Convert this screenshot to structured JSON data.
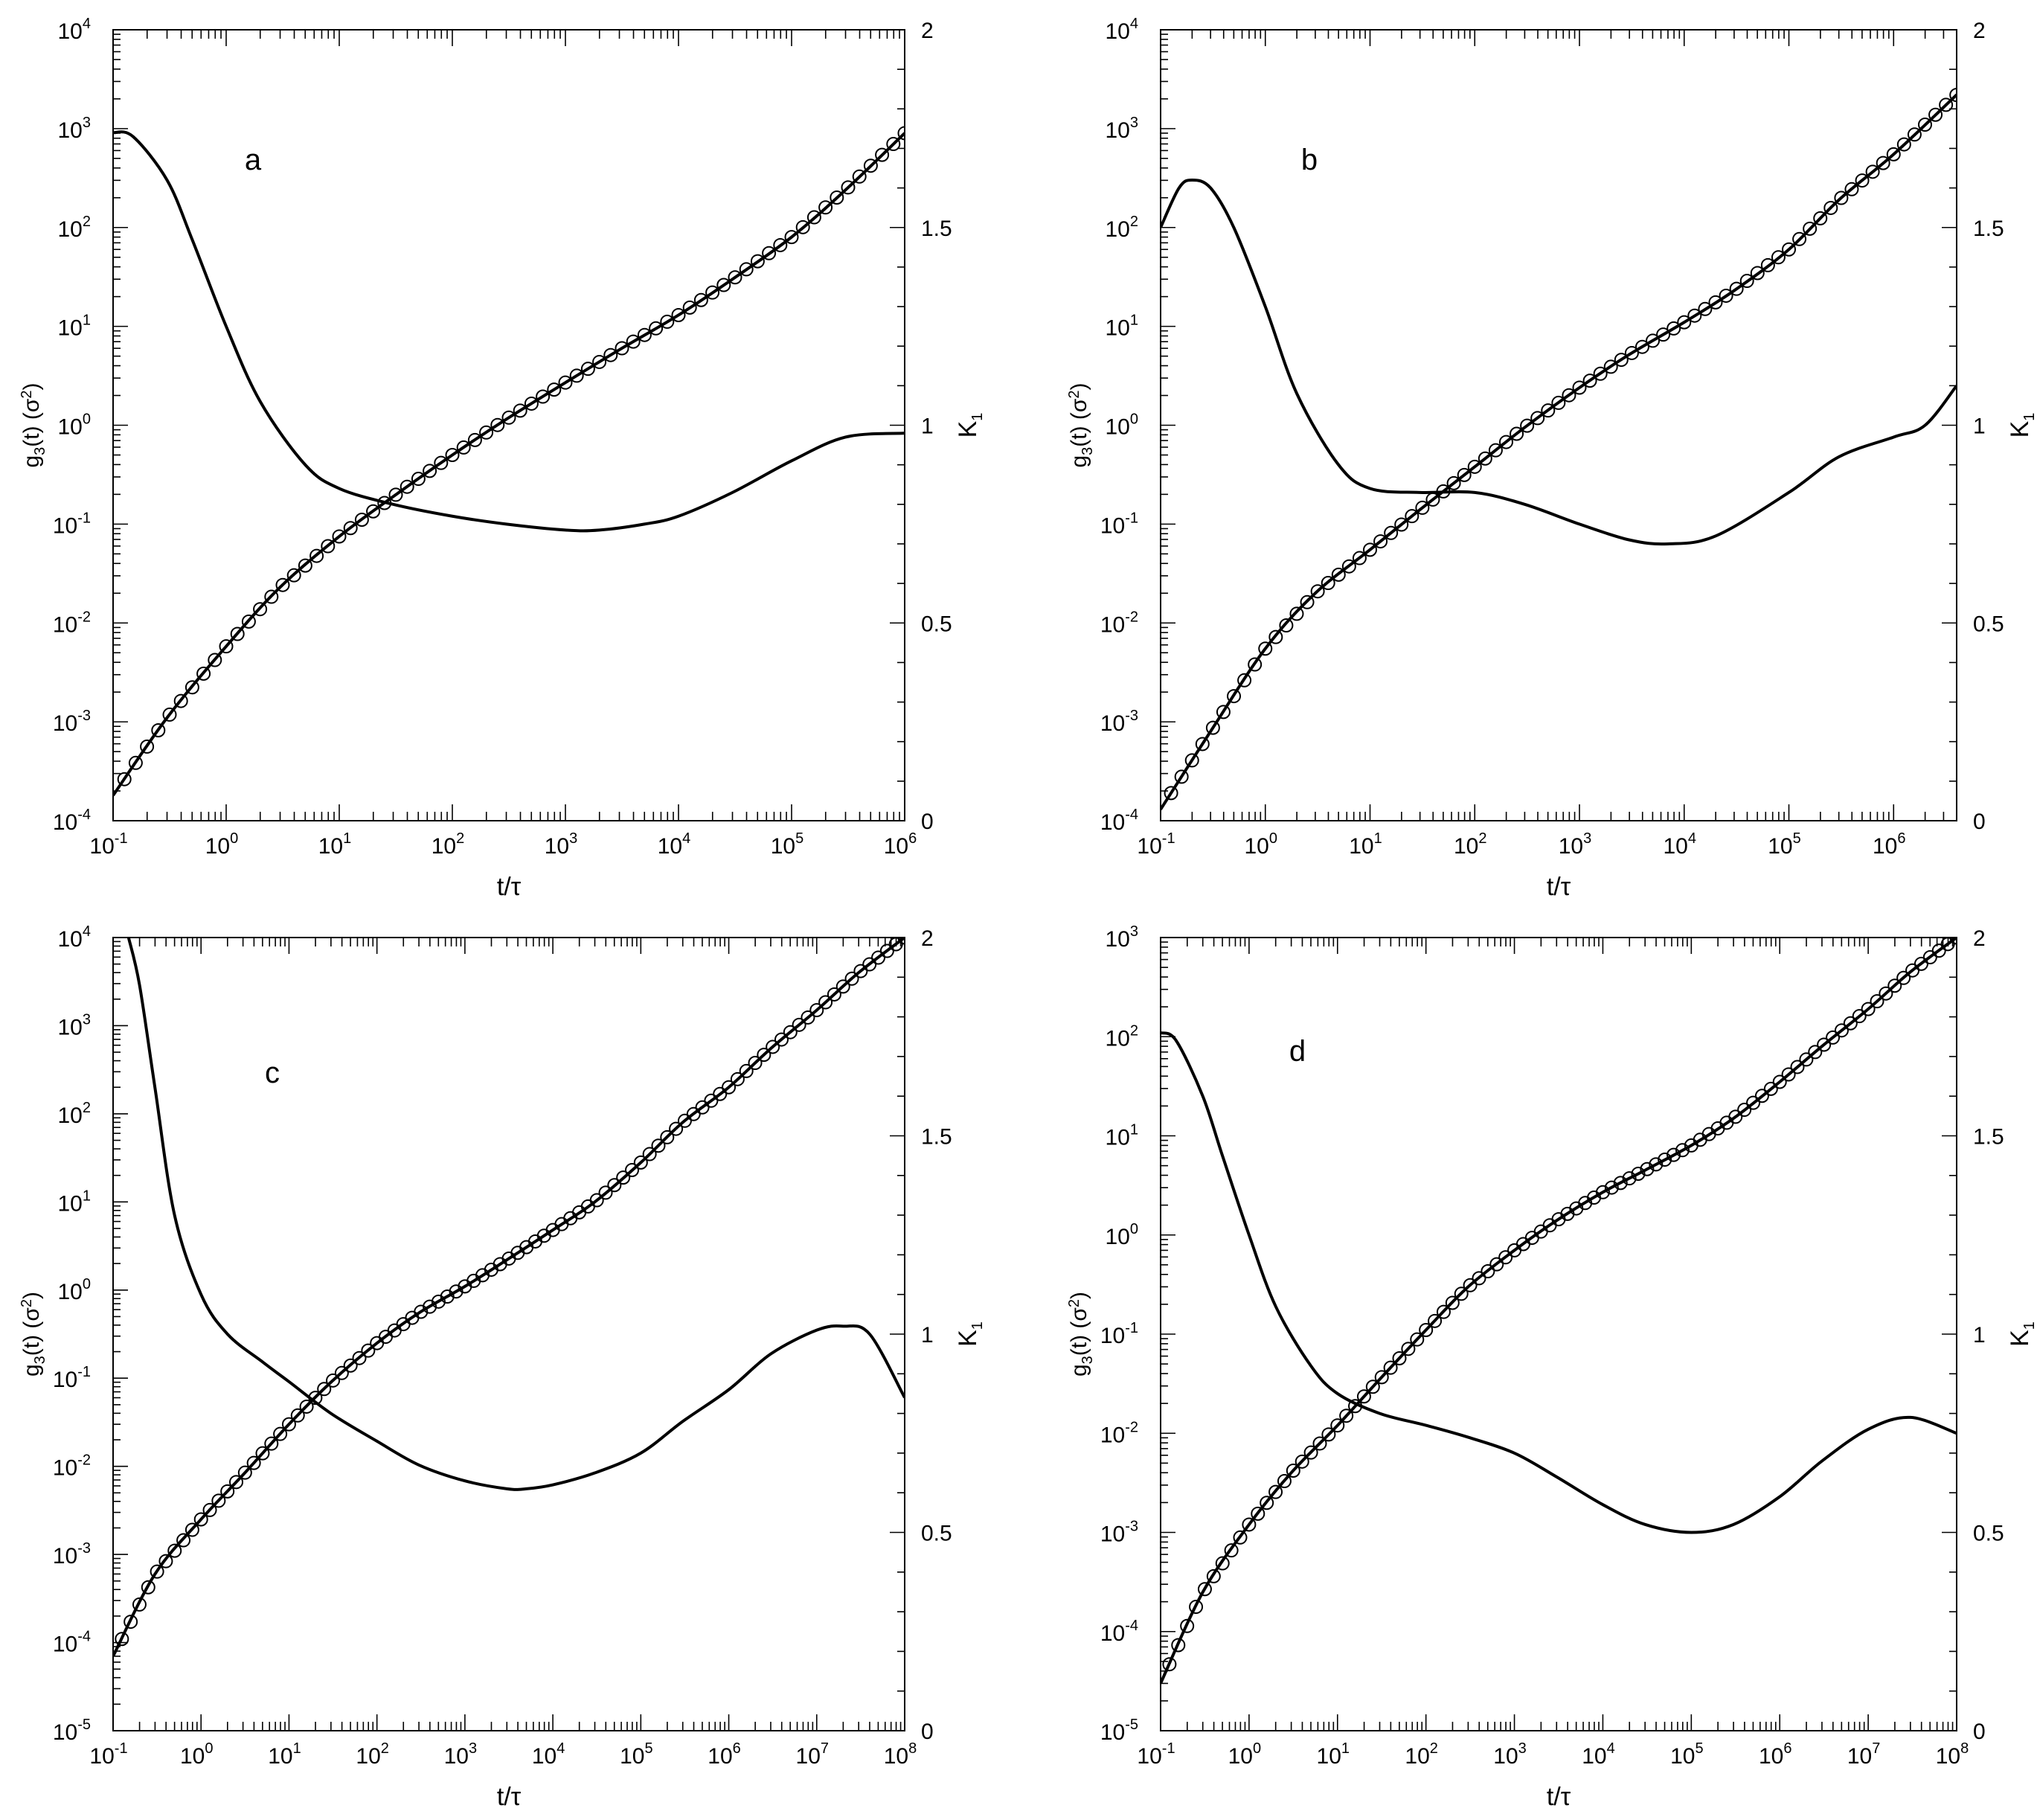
{
  "chart_data": [
    {
      "type": "line",
      "panel_label": "a",
      "xlabel": "t/τ",
      "ylabel_left": "g3(t) (σ2)",
      "ylabel_right": "K1",
      "x_scale": "log",
      "y_left_scale": "log",
      "x_range": [
        0.1,
        1000000
      ],
      "y_left_range": [
        0.0001,
        10000
      ],
      "y_right_range": [
        0,
        2
      ],
      "x_tick_exponents": [
        -1,
        0,
        1,
        2,
        3,
        4,
        5,
        6
      ],
      "y_left_tick_exponents": [
        -4,
        -3,
        -2,
        -1,
        0,
        1,
        2,
        3,
        4
      ],
      "y_right_ticks": [
        "0",
        "0.5",
        "1",
        "1.5",
        "2"
      ],
      "series": [
        {
          "axis": "left",
          "style": "line with open circles",
          "x": [
            0.1,
            0.3,
            1,
            3,
            10,
            30,
            100,
            300,
            1000,
            3000,
            10000,
            30000,
            100000,
            300000,
            1000000
          ],
          "y": [
            0.00018,
            0.0011,
            0.0058,
            0.023,
            0.075,
            0.19,
            0.5,
            1.15,
            2.7,
            5.8,
            13,
            30,
            80,
            240,
            900
          ]
        },
        {
          "axis": "right",
          "style": "line",
          "x": [
            0.1,
            0.15,
            0.3,
            0.5,
            1,
            2,
            5,
            10,
            30,
            100,
            300,
            1000,
            2000,
            5000,
            10000,
            30000,
            100000,
            300000,
            1000000
          ],
          "y": [
            1.74,
            1.73,
            1.62,
            1.47,
            1.25,
            1.06,
            0.9,
            0.84,
            0.8,
            0.77,
            0.75,
            0.735,
            0.735,
            0.75,
            0.77,
            0.83,
            0.91,
            0.97,
            0.98
          ]
        }
      ]
    },
    {
      "type": "line",
      "panel_label": "b",
      "xlabel": "t/τ",
      "ylabel_left": "g3(t) (σ2)",
      "ylabel_right": "K1",
      "x_scale": "log",
      "y_left_scale": "log",
      "x_range": [
        0.1,
        4000000
      ],
      "y_left_range": [
        0.0001,
        10000
      ],
      "y_right_range": [
        0,
        2
      ],
      "x_tick_exponents": [
        -1,
        0,
        1,
        2,
        3,
        4,
        5,
        6
      ],
      "y_left_tick_exponents": [
        -4,
        -3,
        -2,
        -1,
        0,
        1,
        2,
        3,
        4
      ],
      "y_right_ticks": [
        "0",
        "0.5",
        "1",
        "1.5",
        "2"
      ],
      "series": [
        {
          "axis": "left",
          "style": "line with open circles",
          "x": [
            0.1,
            0.3,
            1,
            3,
            10,
            30,
            100,
            300,
            1000,
            3000,
            10000,
            30000,
            100000,
            300000,
            1000000,
            4000000
          ],
          "y": [
            0.00013,
            0.0008,
            0.0055,
            0.02,
            0.055,
            0.14,
            0.38,
            0.95,
            2.4,
            5.2,
            11,
            23,
            60,
            190,
            550,
            2200
          ]
        },
        {
          "axis": "right",
          "style": "line",
          "x": [
            0.1,
            0.15,
            0.2,
            0.3,
            0.5,
            1,
            2,
            5,
            10,
            30,
            100,
            300,
            1000,
            3000,
            7000,
            20000,
            100000,
            300000,
            1000000,
            2000000,
            4000000
          ],
          "y": [
            1.5,
            1.6,
            1.62,
            1.6,
            1.5,
            1.3,
            1.08,
            0.9,
            0.84,
            0.83,
            0.83,
            0.8,
            0.75,
            0.71,
            0.7,
            0.72,
            0.83,
            0.92,
            0.97,
            1.0,
            1.1
          ]
        }
      ]
    },
    {
      "type": "line",
      "panel_label": "c",
      "xlabel": "t/τ",
      "ylabel_left": "g3(t) (σ2)",
      "ylabel_right": "K1",
      "x_scale": "log",
      "y_left_scale": "log",
      "x_range": [
        0.1,
        100000000
      ],
      "y_left_range": [
        1e-05,
        10000
      ],
      "y_right_range": [
        0,
        2
      ],
      "x_tick_exponents": [
        -1,
        0,
        1,
        2,
        3,
        4,
        5,
        6,
        7,
        8
      ],
      "y_left_tick_exponents": [
        -5,
        -4,
        -3,
        -2,
        -1,
        0,
        1,
        2,
        3,
        4
      ],
      "y_right_ticks": [
        "0",
        "0.5",
        "1",
        "1.5",
        "2"
      ],
      "series": [
        {
          "axis": "left",
          "style": "line with open circles",
          "x": [
            0.1,
            0.3,
            1,
            3,
            10,
            30,
            100,
            300,
            1000,
            3000,
            10000,
            30000,
            100000,
            300000,
            1000000,
            3000000,
            10000000,
            30000000,
            100000000
          ],
          "y": [
            7e-05,
            0.0006,
            0.0025,
            0.008,
            0.03,
            0.09,
            0.25,
            0.55,
            1.1,
            2.2,
            4.8,
            10,
            28,
            80,
            200,
            550,
            1500,
            4000,
            10000
          ]
        },
        {
          "axis": "right",
          "style": "line",
          "x": [
            0.15,
            0.2,
            0.3,
            0.5,
            1,
            2,
            5,
            10,
            30,
            100,
            300,
            1000,
            3000,
            5000,
            10000,
            30000,
            100000,
            300000,
            1000000,
            3000000,
            10000000,
            20000000,
            40000000,
            100000000
          ],
          "y": [
            2.0,
            1.88,
            1.62,
            1.3,
            1.1,
            1.0,
            0.93,
            0.88,
            0.8,
            0.73,
            0.67,
            0.63,
            0.61,
            0.61,
            0.62,
            0.65,
            0.7,
            0.78,
            0.86,
            0.95,
            1.01,
            1.02,
            1.0,
            0.84
          ]
        }
      ]
    },
    {
      "type": "line",
      "panel_label": "d",
      "xlabel": "t/τ",
      "ylabel_left": "g3(t) (σ2)",
      "ylabel_right": "K1",
      "x_scale": "log",
      "y_left_scale": "log",
      "x_range": [
        0.1,
        100000000
      ],
      "y_left_range": [
        1e-05,
        1000
      ],
      "y_right_range": [
        0,
        2
      ],
      "x_tick_exponents": [
        -1,
        0,
        1,
        2,
        3,
        4,
        5,
        6,
        7,
        8
      ],
      "y_left_tick_exponents": [
        -5,
        -4,
        -3,
        -2,
        -1,
        0,
        1,
        2,
        3
      ],
      "y_right_ticks": [
        "0",
        "0.5",
        "1",
        "1.5",
        "2"
      ],
      "series": [
        {
          "axis": "left",
          "style": "line with open circles",
          "x": [
            0.1,
            0.3,
            1,
            3,
            10,
            30,
            100,
            300,
            1000,
            3000,
            10000,
            30000,
            100000,
            300000,
            1000000,
            3000000,
            10000000,
            30000000,
            100000000
          ],
          "y": [
            3e-05,
            0.00025,
            0.0012,
            0.004,
            0.012,
            0.035,
            0.11,
            0.3,
            0.7,
            1.4,
            2.7,
            4.5,
            8,
            15,
            35,
            80,
            190,
            450,
            1000
          ]
        },
        {
          "axis": "right",
          "style": "line",
          "x": [
            0.1,
            0.15,
            0.3,
            0.5,
            1,
            2,
            5,
            10,
            30,
            100,
            300,
            1000,
            3000,
            10000,
            30000,
            100000,
            300000,
            1000000,
            3000000,
            10000000,
            30000000,
            100000000
          ],
          "y": [
            1.76,
            1.74,
            1.6,
            1.45,
            1.25,
            1.07,
            0.92,
            0.85,
            0.8,
            0.77,
            0.74,
            0.7,
            0.64,
            0.57,
            0.52,
            0.5,
            0.52,
            0.59,
            0.68,
            0.76,
            0.79,
            0.75
          ]
        }
      ]
    }
  ]
}
